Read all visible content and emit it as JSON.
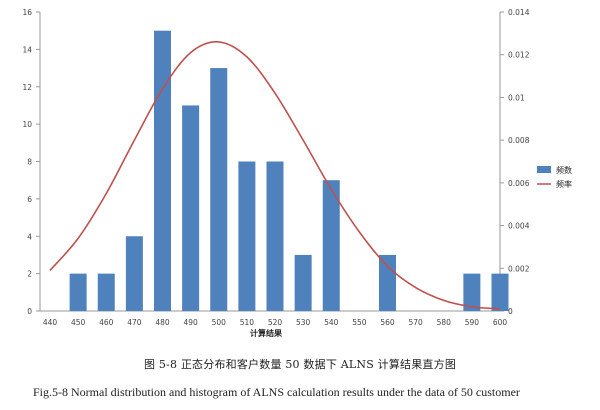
{
  "chart_data": {
    "type": "bar",
    "categories": [
      "440",
      "450",
      "460",
      "470",
      "480",
      "490",
      "500",
      "510",
      "520",
      "530",
      "540",
      "550",
      "560",
      "570",
      "580",
      "590",
      "600"
    ],
    "series": [
      {
        "name": "频数",
        "type": "bar",
        "axis": "left",
        "color": "#4f81bd",
        "values": [
          0,
          2,
          2,
          4,
          15,
          11,
          13,
          8,
          8,
          3,
          7,
          0,
          3,
          0,
          0,
          2,
          2
        ]
      },
      {
        "name": "频率",
        "type": "line",
        "axis": "right",
        "color": "#c0504d",
        "x": [
          440,
          450,
          460,
          470,
          480,
          490,
          500,
          510,
          520,
          530,
          540,
          550,
          560,
          570,
          580,
          590,
          600
        ],
        "values": [
          0.0019,
          0.0034,
          0.0055,
          0.008,
          0.0104,
          0.0121,
          0.0126,
          0.0119,
          0.0102,
          0.008,
          0.0057,
          0.0037,
          0.0021,
          0.0011,
          0.0005,
          0.0002,
          0.0001
        ]
      }
    ],
    "xlabel": "计算结果",
    "ylim": [
      0,
      16
    ],
    "y2lim": [
      0,
      0.014
    ],
    "yticks": [
      "0",
      "2",
      "4",
      "6",
      "8",
      "10",
      "12",
      "14",
      "16"
    ],
    "y2ticks": [
      "0",
      "0.002",
      "0.004",
      "0.006",
      "0.008",
      "0.01",
      "0.012",
      "0.014"
    ],
    "legend_position": "right",
    "grid": false
  },
  "captions": {
    "chinese": "图 5-8  正态分布和客户数量 50 数据下 ALNS 计算结果直方图",
    "english": "Fig.5-8 Normal distribution and histogram of ALNS calculation results under the data of 50 customer"
  }
}
